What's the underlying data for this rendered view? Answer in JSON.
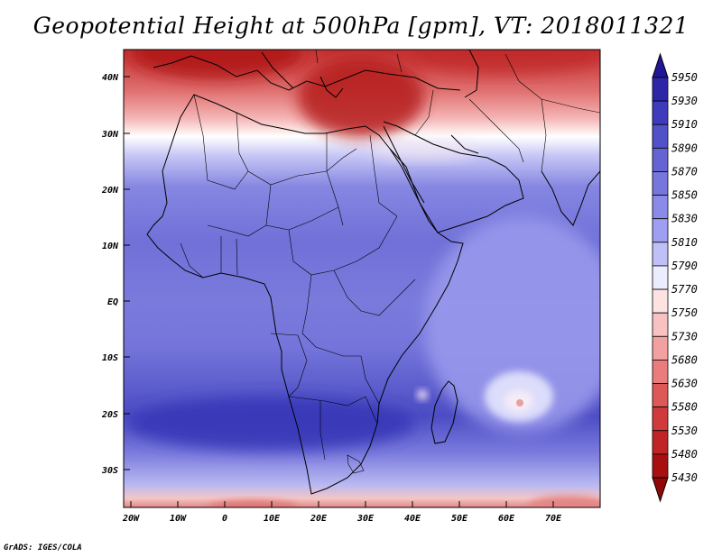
{
  "title": "Geopotential Height at 500hPa [gpm], VT: 2018011321",
  "credit": "GrADS: IGES/COLA",
  "map": {
    "lon_range": [
      -25,
      80
    ],
    "lat_range": [
      -37,
      45
    ],
    "lat_ticks": [
      "40N",
      "30N",
      "20N",
      "10N",
      "EQ",
      "10S",
      "20S",
      "30S"
    ],
    "lon_ticks": [
      "20W",
      "10W",
      "0",
      "10E",
      "20E",
      "30E",
      "40E",
      "50E",
      "60E",
      "70E"
    ]
  },
  "colorbar": {
    "levels": [
      "5950",
      "5930",
      "5910",
      "5890",
      "5870",
      "5850",
      "5830",
      "5810",
      "5790",
      "5770",
      "5750",
      "5730",
      "5680",
      "5630",
      "5580",
      "5530",
      "5480",
      "5430"
    ],
    "colors": [
      "#201696",
      "#2d27a8",
      "#3e3cbc",
      "#5151c8",
      "#6464d2",
      "#7676dc",
      "#8a8ae8",
      "#9e9ef2",
      "#c0c0f8",
      "#ececff",
      "#fde2e2",
      "#f9c2c2",
      "#f3a0a0",
      "#ea7c7c",
      "#de5858",
      "#d03a3a",
      "#c02424",
      "#a81010",
      "#900808"
    ]
  }
}
